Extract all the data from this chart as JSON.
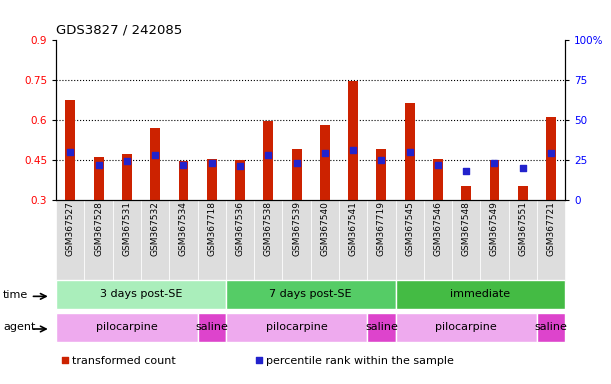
{
  "title": "GDS3827 / 242085",
  "samples": [
    "GSM367527",
    "GSM367528",
    "GSM367531",
    "GSM367532",
    "GSM367534",
    "GSM367718",
    "GSM367536",
    "GSM367538",
    "GSM367539",
    "GSM367540",
    "GSM367541",
    "GSM367719",
    "GSM367545",
    "GSM367546",
    "GSM367548",
    "GSM367549",
    "GSM367551",
    "GSM367721"
  ],
  "transformed_count": [
    0.675,
    0.462,
    0.473,
    0.568,
    0.445,
    0.454,
    0.45,
    0.596,
    0.492,
    0.58,
    0.745,
    0.492,
    0.663,
    0.454,
    0.352,
    0.45,
    0.352,
    0.612
  ],
  "percentile_rank_pct": [
    30,
    22,
    24,
    28,
    22,
    23,
    21,
    28,
    23,
    29,
    31,
    25,
    30,
    22,
    18,
    23,
    20,
    29
  ],
  "bar_color": "#cc2200",
  "dot_color": "#2222cc",
  "ylim_left": [
    0.3,
    0.9
  ],
  "ylim_right": [
    0,
    100
  ],
  "yticks_left": [
    0.3,
    0.45,
    0.6,
    0.75,
    0.9
  ],
  "yticks_right": [
    0,
    25,
    50,
    75,
    100
  ],
  "ytick_labels_left": [
    "0.3",
    "0.45",
    "0.6",
    "0.75",
    "0.9"
  ],
  "ytick_labels_right": [
    "0",
    "25",
    "50",
    "75",
    "100%"
  ],
  "hlines": [
    0.45,
    0.6,
    0.75
  ],
  "time_groups": [
    {
      "label": "3 days post-SE",
      "start": 0,
      "end": 5,
      "color": "#aaeebb"
    },
    {
      "label": "7 days post-SE",
      "start": 6,
      "end": 11,
      "color": "#55cc66"
    },
    {
      "label": "immediate",
      "start": 12,
      "end": 17,
      "color": "#44bb44"
    }
  ],
  "agent_groups": [
    {
      "label": "pilocarpine",
      "start": 0,
      "end": 4,
      "color": "#eeaaee"
    },
    {
      "label": "saline",
      "start": 5,
      "end": 5,
      "color": "#dd44cc"
    },
    {
      "label": "pilocarpine",
      "start": 6,
      "end": 10,
      "color": "#eeaaee"
    },
    {
      "label": "saline",
      "start": 11,
      "end": 11,
      "color": "#dd44cc"
    },
    {
      "label": "pilocarpine",
      "start": 12,
      "end": 16,
      "color": "#eeaaee"
    },
    {
      "label": "saline",
      "start": 17,
      "end": 17,
      "color": "#dd44cc"
    }
  ],
  "legend_items": [
    {
      "label": "transformed count",
      "color": "#cc2200"
    },
    {
      "label": "percentile rank within the sample",
      "color": "#2222cc"
    }
  ],
  "bar_width": 0.35,
  "dot_size": 18,
  "xticklabel_bg": "#dddddd"
}
